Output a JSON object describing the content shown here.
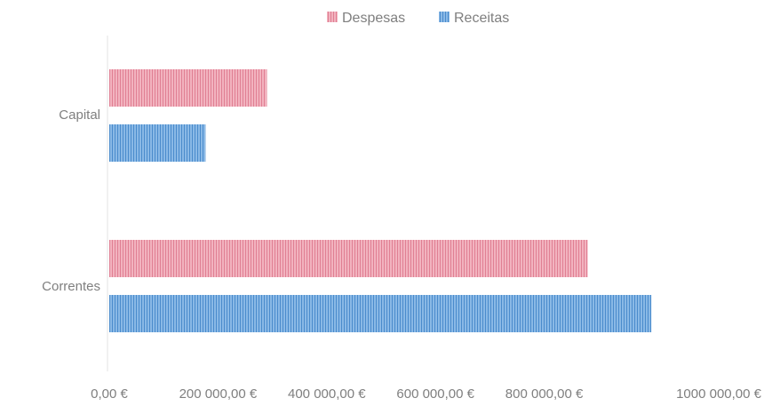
{
  "chart_data": {
    "type": "bar",
    "orientation": "horizontal",
    "categories": [
      "Capital",
      "Correntes"
    ],
    "series": [
      {
        "name": "Despesas",
        "values": [
          290000,
          880000
        ],
        "color": "#e88fa0"
      },
      {
        "name": "Receitas",
        "values": [
          177000,
          997000
        ],
        "color": "#5b9bd5"
      }
    ],
    "x_ticks": [
      "0,00 €",
      "200 000,00 €",
      "400 000,00 €",
      "600 000,00 €",
      "800 000,00 €",
      "1000 000,00 €"
    ],
    "xlim": [
      0,
      1000000
    ],
    "legend_position": "top",
    "grid": false
  }
}
